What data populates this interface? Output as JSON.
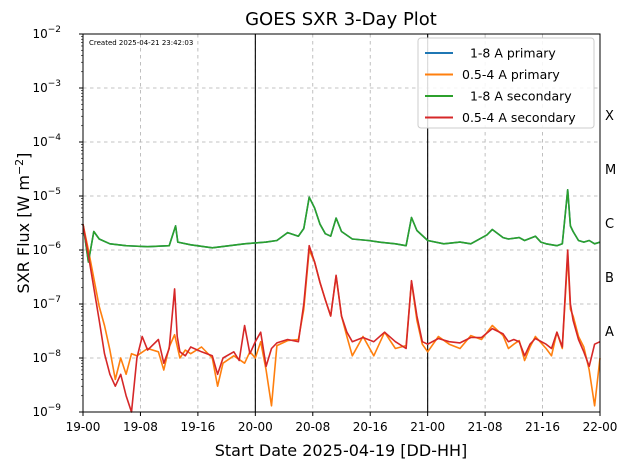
{
  "chart_data": {
    "type": "line",
    "title": "GOES SXR 3-Day Plot",
    "xlabel": "Start Date 2025-04-19 [DD-HH]",
    "ylabel": "SXR Flux [W m$^{-2}$]",
    "ylabel_main": "SXR Flux [W m",
    "ylabel_sup": "−2",
    "ylabel_end": "]",
    "created": "Created 2025-04-21 23:42:03",
    "y_scale": "log",
    "ylim": [
      1e-09,
      0.01
    ],
    "xlim": [
      "19-00",
      "22-00"
    ],
    "x_ticks": [
      "19-00",
      "19-08",
      "19-16",
      "20-00",
      "20-08",
      "20-16",
      "21-00",
      "21-08",
      "21-16",
      "22-00"
    ],
    "y_ticks": [
      {
        "base": "10",
        "exp": "−9"
      },
      {
        "base": "10",
        "exp": "−8"
      },
      {
        "base": "10",
        "exp": "−7"
      },
      {
        "base": "10",
        "exp": "−6"
      },
      {
        "base": "10",
        "exp": "−5"
      },
      {
        "base": "10",
        "exp": "−4"
      },
      {
        "base": "10",
        "exp": "−3"
      },
      {
        "base": "10",
        "exp": "−2"
      }
    ],
    "day_lines": [
      "20-00",
      "21-00"
    ],
    "grid": true,
    "legend_position": "top-right",
    "flare_classes": [
      "A",
      "B",
      "C",
      "M",
      "X"
    ],
    "series": [
      {
        "name": "  1-8 A primary",
        "color": "#1f77b4",
        "points": [
          [
            0,
            3e-06
          ],
          [
            1,
            6e-07
          ],
          [
            2,
            2.2e-06
          ],
          [
            3,
            1.6e-06
          ],
          [
            5,
            1.3e-06
          ],
          [
            8,
            1.2e-06
          ],
          [
            12,
            1.15e-06
          ],
          [
            16,
            1.2e-06
          ],
          [
            17.2,
            2.8e-06
          ],
          [
            17.6,
            1.4e-06
          ],
          [
            20,
            1.25e-06
          ],
          [
            24,
            1.1e-06
          ],
          [
            30,
            1.3e-06
          ],
          [
            34,
            1.4e-06
          ],
          [
            36,
            1.5e-06
          ],
          [
            38,
            2.1e-06
          ],
          [
            40,
            1.8e-06
          ],
          [
            41,
            2.5e-06
          ],
          [
            42,
            9.5e-06
          ],
          [
            43,
            6e-06
          ],
          [
            44,
            3e-06
          ],
          [
            45,
            2e-06
          ],
          [
            46,
            1.8e-06
          ],
          [
            47,
            3.9e-06
          ],
          [
            48,
            2.2e-06
          ],
          [
            50,
            1.6e-06
          ],
          [
            53,
            1.5e-06
          ],
          [
            55,
            1.4e-06
          ],
          [
            58,
            1.3e-06
          ],
          [
            60,
            1.2e-06
          ],
          [
            61,
            4e-06
          ],
          [
            62,
            2.3e-06
          ],
          [
            64,
            1.5e-06
          ],
          [
            67,
            1.3e-06
          ],
          [
            70,
            1.4e-06
          ],
          [
            72,
            1.3e-06
          ],
          [
            75,
            1.9e-06
          ],
          [
            76,
            2.4e-06
          ],
          [
            78,
            1.7e-06
          ],
          [
            79,
            1.6e-06
          ],
          [
            81,
            1.7e-06
          ],
          [
            82,
            1.5e-06
          ],
          [
            84,
            1.8e-06
          ],
          [
            85,
            1.4e-06
          ],
          [
            86,
            1.3e-06
          ],
          [
            88,
            1.2e-06
          ],
          [
            89,
            1.3e-06
          ],
          [
            90,
            1.3e-05
          ],
          [
            90.5,
            2.8e-06
          ],
          [
            91,
            2.2e-06
          ],
          [
            92,
            1.5e-06
          ],
          [
            93,
            1.4e-06
          ],
          [
            94,
            1.5e-06
          ],
          [
            95,
            1.3e-06
          ],
          [
            96,
            1.4e-06
          ]
        ]
      },
      {
        "name": "0.5-4 A primary",
        "color": "#ff7f0e",
        "points": [
          [
            0,
            3e-06
          ],
          [
            1,
            1e-06
          ],
          [
            2,
            3e-07
          ],
          [
            3,
            9e-08
          ],
          [
            4,
            4e-08
          ],
          [
            5,
            1.4e-08
          ],
          [
            6,
            4e-09
          ],
          [
            7,
            1e-08
          ],
          [
            8,
            5e-09
          ],
          [
            9,
            1.2e-08
          ],
          [
            10,
            1.1e-08
          ],
          [
            12,
            1.5e-08
          ],
          [
            14,
            1.3e-08
          ],
          [
            15,
            6e-09
          ],
          [
            16,
            1.6e-08
          ],
          [
            17,
            2.7e-08
          ],
          [
            18,
            1e-08
          ],
          [
            19,
            1.4e-08
          ],
          [
            20,
            1.2e-08
          ],
          [
            22,
            1.6e-08
          ],
          [
            24,
            1e-08
          ],
          [
            25,
            3e-09
          ],
          [
            26,
            8e-09
          ],
          [
            28,
            1.1e-08
          ],
          [
            30,
            8e-09
          ],
          [
            31,
            1.3e-08
          ],
          [
            32,
            1e-08
          ],
          [
            33,
            2e-08
          ],
          [
            34,
            6e-09
          ],
          [
            35,
            1.3e-09
          ],
          [
            36,
            1.7e-08
          ],
          [
            38,
            2.1e-08
          ],
          [
            40,
            2.2e-08
          ],
          [
            41,
            8e-08
          ],
          [
            42,
            1e-06
          ],
          [
            43,
            6e-07
          ],
          [
            44,
            2.5e-07
          ],
          [
            45,
            1.2e-07
          ],
          [
            46,
            6e-08
          ],
          [
            47,
            3.3e-07
          ],
          [
            48,
            6e-08
          ],
          [
            49,
            2.5e-08
          ],
          [
            50,
            1.1e-08
          ],
          [
            52,
            2.5e-08
          ],
          [
            54,
            1.1e-08
          ],
          [
            56,
            3e-08
          ],
          [
            58,
            1.5e-08
          ],
          [
            60,
            1.7e-08
          ],
          [
            61,
            2.6e-07
          ],
          [
            62,
            5e-08
          ],
          [
            63,
            1.8e-08
          ],
          [
            64,
            1.3e-08
          ],
          [
            66,
            2.5e-08
          ],
          [
            68,
            1.8e-08
          ],
          [
            70,
            1.5e-08
          ],
          [
            72,
            2.6e-08
          ],
          [
            74,
            2.2e-08
          ],
          [
            76,
            4e-08
          ],
          [
            78,
            2.6e-08
          ],
          [
            79,
            1.5e-08
          ],
          [
            80,
            1.8e-08
          ],
          [
            81,
            2.1e-08
          ],
          [
            82,
            9e-09
          ],
          [
            83,
            1.6e-08
          ],
          [
            84,
            2.5e-08
          ],
          [
            86,
            1.5e-08
          ],
          [
            87,
            1.1e-08
          ],
          [
            88,
            3e-08
          ],
          [
            89,
            1.5e-08
          ],
          [
            90,
            8e-07
          ],
          [
            90.5,
            8e-08
          ],
          [
            91,
            6e-08
          ],
          [
            92,
            2.5e-08
          ],
          [
            93,
            1.6e-08
          ],
          [
            94,
            6e-09
          ],
          [
            95,
            1.3e-09
          ],
          [
            96,
            1e-08
          ]
        ]
      },
      {
        "name": "  1-8 A secondary",
        "color": "#2ca02c",
        "points": [
          [
            0,
            3e-06
          ],
          [
            1,
            6e-07
          ],
          [
            2,
            2.2e-06
          ],
          [
            3,
            1.6e-06
          ],
          [
            5,
            1.3e-06
          ],
          [
            8,
            1.2e-06
          ],
          [
            12,
            1.15e-06
          ],
          [
            16,
            1.2e-06
          ],
          [
            17.2,
            2.8e-06
          ],
          [
            17.6,
            1.4e-06
          ],
          [
            20,
            1.25e-06
          ],
          [
            24,
            1.1e-06
          ],
          [
            30,
            1.3e-06
          ],
          [
            34,
            1.4e-06
          ],
          [
            36,
            1.5e-06
          ],
          [
            38,
            2.1e-06
          ],
          [
            40,
            1.8e-06
          ],
          [
            41,
            2.5e-06
          ],
          [
            42,
            9.5e-06
          ],
          [
            43,
            6e-06
          ],
          [
            44,
            3e-06
          ],
          [
            45,
            2e-06
          ],
          [
            46,
            1.8e-06
          ],
          [
            47,
            3.9e-06
          ],
          [
            48,
            2.2e-06
          ],
          [
            50,
            1.6e-06
          ],
          [
            53,
            1.5e-06
          ],
          [
            55,
            1.4e-06
          ],
          [
            58,
            1.3e-06
          ],
          [
            60,
            1.2e-06
          ],
          [
            61,
            4e-06
          ],
          [
            62,
            2.3e-06
          ],
          [
            64,
            1.5e-06
          ],
          [
            67,
            1.3e-06
          ],
          [
            70,
            1.4e-06
          ],
          [
            72,
            1.3e-06
          ],
          [
            75,
            1.9e-06
          ],
          [
            76,
            2.4e-06
          ],
          [
            78,
            1.7e-06
          ],
          [
            79,
            1.6e-06
          ],
          [
            81,
            1.7e-06
          ],
          [
            82,
            1.5e-06
          ],
          [
            84,
            1.8e-06
          ],
          [
            85,
            1.4e-06
          ],
          [
            86,
            1.3e-06
          ],
          [
            88,
            1.2e-06
          ],
          [
            89,
            1.3e-06
          ],
          [
            90,
            1.3e-05
          ],
          [
            90.5,
            2.8e-06
          ],
          [
            91,
            2.2e-06
          ],
          [
            92,
            1.5e-06
          ],
          [
            93,
            1.4e-06
          ],
          [
            94,
            1.5e-06
          ],
          [
            95,
            1.3e-06
          ],
          [
            96,
            1.4e-06
          ]
        ]
      },
      {
        "name": "0.5-4 A secondary",
        "color": "#d62728",
        "points": [
          [
            0,
            3e-06
          ],
          [
            1,
            8e-07
          ],
          [
            2,
            2e-07
          ],
          [
            3,
            5e-08
          ],
          [
            4,
            1.2e-08
          ],
          [
            5,
            5e-09
          ],
          [
            6,
            3e-09
          ],
          [
            7,
            5e-09
          ],
          [
            8,
            2e-09
          ],
          [
            9,
            1e-09
          ],
          [
            10,
            1e-08
          ],
          [
            11,
            2.5e-08
          ],
          [
            12,
            1.4e-08
          ],
          [
            14,
            2.2e-08
          ],
          [
            15,
            8e-09
          ],
          [
            16,
            1.5e-08
          ],
          [
            17,
            1.9e-07
          ],
          [
            17.5,
            2.5e-08
          ],
          [
            18,
            1.3e-08
          ],
          [
            19,
            1.1e-08
          ],
          [
            20,
            1.6e-08
          ],
          [
            22,
            1.3e-08
          ],
          [
            24,
            1.1e-08
          ],
          [
            25,
            5e-09
          ],
          [
            26,
            1e-08
          ],
          [
            28,
            1.3e-08
          ],
          [
            29,
            9e-09
          ],
          [
            30,
            4e-08
          ],
          [
            31,
            1.2e-08
          ],
          [
            32,
            2e-08
          ],
          [
            33,
            3e-08
          ],
          [
            34,
            7e-09
          ],
          [
            35,
            1.5e-08
          ],
          [
            36,
            1.9e-08
          ],
          [
            38,
            2.2e-08
          ],
          [
            40,
            2e-08
          ],
          [
            41,
            1e-07
          ],
          [
            42,
            1.2e-06
          ],
          [
            43,
            6e-07
          ],
          [
            44,
            2.5e-07
          ],
          [
            45,
            1.2e-07
          ],
          [
            46,
            6e-08
          ],
          [
            47,
            3.4e-07
          ],
          [
            48,
            6e-08
          ],
          [
            49,
            3e-08
          ],
          [
            50,
            2e-08
          ],
          [
            52,
            2.4e-08
          ],
          [
            54,
            2e-08
          ],
          [
            56,
            3e-08
          ],
          [
            58,
            2e-08
          ],
          [
            60,
            1.5e-08
          ],
          [
            61,
            2.7e-07
          ],
          [
            62,
            6e-08
          ],
          [
            63,
            2e-08
          ],
          [
            64,
            1.8e-08
          ],
          [
            66,
            2.3e-08
          ],
          [
            68,
            2e-08
          ],
          [
            70,
            1.9e-08
          ],
          [
            72,
            2.4e-08
          ],
          [
            74,
            2.4e-08
          ],
          [
            76,
            3.5e-08
          ],
          [
            78,
            2.8e-08
          ],
          [
            79,
            2e-08
          ],
          [
            80,
            2.2e-08
          ],
          [
            81,
            2e-08
          ],
          [
            82,
            1.1e-08
          ],
          [
            83,
            1.8e-08
          ],
          [
            84,
            2.3e-08
          ],
          [
            86,
            1.8e-08
          ],
          [
            87,
            1.5e-08
          ],
          [
            88,
            3e-08
          ],
          [
            89,
            1.6e-08
          ],
          [
            90,
            1e-06
          ],
          [
            90.5,
            1e-07
          ],
          [
            91,
            5e-08
          ],
          [
            92,
            2.2e-08
          ],
          [
            93,
            1.3e-08
          ],
          [
            94,
            7e-09
          ],
          [
            95,
            1.8e-08
          ],
          [
            96,
            2e-08
          ]
        ]
      }
    ]
  }
}
